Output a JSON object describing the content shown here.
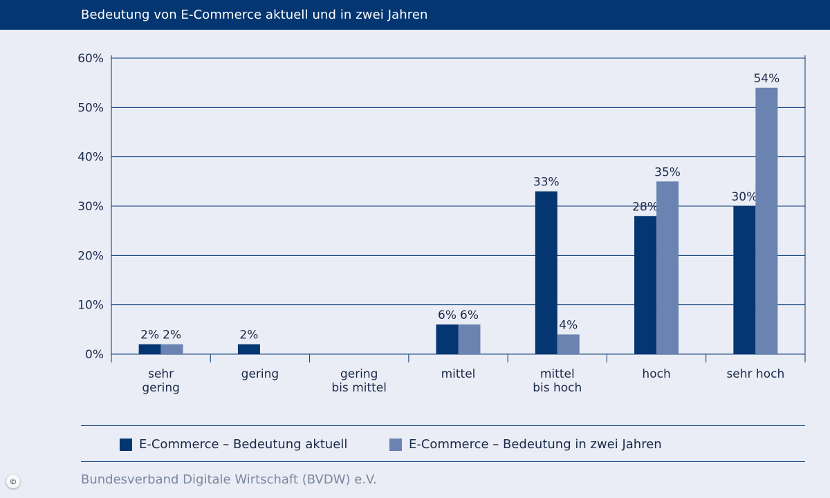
{
  "header": {
    "title": "Bedeutung von E-Commerce aktuell und in zwei Jahren"
  },
  "chart_data": {
    "type": "bar",
    "title": "Bedeutung von E-Commerce aktuell und in zwei Jahren",
    "categories": [
      [
        "sehr",
        "gering"
      ],
      [
        "gering"
      ],
      [
        "gering",
        "bis mittel"
      ],
      [
        "mittel"
      ],
      [
        "mittel",
        "bis hoch"
      ],
      [
        "hoch"
      ],
      [
        "sehr hoch"
      ]
    ],
    "series": [
      {
        "name": "E-Commerce – Bedeutung aktuell",
        "color": "#043672",
        "values": [
          2,
          2,
          0,
          6,
          33,
          28,
          30
        ],
        "labels": [
          "2%",
          "2%",
          "",
          "6%",
          "33%",
          "28%",
          "30%"
        ]
      },
      {
        "name": "E-Commerce – Bedeutung in zwei Jahren",
        "color": "#6a83b1",
        "values": [
          2,
          0,
          0,
          6,
          4,
          35,
          54
        ],
        "labels": [
          "2%",
          "",
          "",
          "6%",
          "4%",
          "35%",
          "54%"
        ]
      }
    ],
    "yticks": [
      "0%",
      "10%",
      "20%",
      "30%",
      "40%",
      "50%",
      "60%"
    ],
    "ylim": [
      0,
      60
    ],
    "grid": true,
    "legend_position": "bottom"
  },
  "legend": {
    "items": [
      {
        "label": "E-Commerce – Bedeutung aktuell",
        "color": "#043672"
      },
      {
        "label": "E-Commerce – Bedeutung in zwei Jahren",
        "color": "#6a83b1"
      }
    ]
  },
  "footer": {
    "source": "Bundesverband Digitale Wirtschaft (BVDW) e.V.",
    "copyright_symbol": "©"
  }
}
